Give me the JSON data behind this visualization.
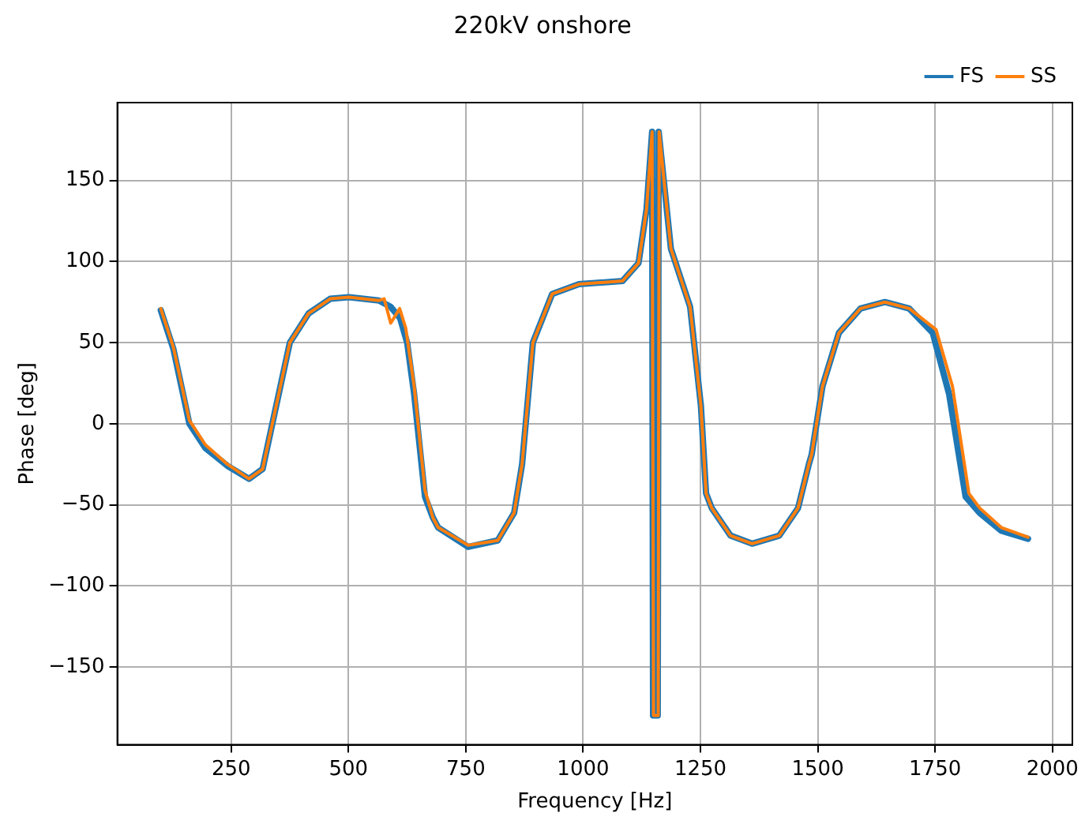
{
  "chart_data": {
    "type": "line",
    "title": "220kV onshore",
    "xlabel": "Frequency [Hz]",
    "ylabel": "Phase [deg]",
    "xlim": [
      7.5,
      2042.5
    ],
    "ylim": [
      -198,
      198
    ],
    "xticks": [
      250,
      500,
      750,
      1000,
      1250,
      1500,
      1750,
      2000
    ],
    "yticks": [
      -150,
      -100,
      -50,
      0,
      50,
      100,
      150
    ],
    "grid": true,
    "legend": "top right",
    "marker": "none",
    "line_style": "solid",
    "series": [
      {
        "name": "FS",
        "color": "#1f77b4",
        "x": [
          100,
          127,
          161,
          195,
          242,
          288,
          317,
          346,
          375,
          415,
          461,
          501,
          565,
          590,
          610,
          625,
          640,
          663,
          680,
          691,
          755,
          818,
          853,
          870,
          893,
          934,
          991,
          1084,
          1118,
          1135,
          1147,
          1149,
          1159,
          1161,
          1187,
          1228,
          1251,
          1262,
          1274,
          1314,
          1360,
          1418,
          1458,
          1481,
          1487,
          1510,
          1545,
          1591,
          1643,
          1695,
          1745,
          1780,
          1815,
          1845,
          1891,
          1948
        ],
        "values": [
          70,
          46,
          0,
          -15,
          -26,
          -34,
          -28,
          11,
          50,
          68,
          77,
          78,
          76,
          72,
          65,
          50,
          18,
          -45,
          -58,
          -64,
          -76,
          -72,
          -55,
          -25,
          50,
          80,
          86,
          88,
          99,
          132,
          180,
          -180,
          -180,
          180,
          108,
          72,
          11,
          -43,
          -52,
          -69,
          -74,
          -69,
          -52,
          -25,
          -19,
          23,
          56,
          71,
          75,
          71,
          56,
          18,
          -45,
          -55,
          -66,
          -71
        ]
      },
      {
        "name": "SS",
        "color": "#ff7f0e",
        "x": [
          100,
          127,
          161,
          195,
          242,
          288,
          317,
          346,
          375,
          415,
          461,
          501,
          565,
          576,
          590,
          609,
          622,
          640,
          663,
          680,
          691,
          755,
          818,
          853,
          870,
          893,
          934,
          991,
          1084,
          1118,
          1135,
          1147,
          1150,
          1160,
          1162,
          1187,
          1228,
          1251,
          1262,
          1274,
          1314,
          1360,
          1418,
          1458,
          1481,
          1487,
          1510,
          1545,
          1591,
          1643,
          1695,
          1752,
          1787,
          1822,
          1845,
          1891,
          1948
        ],
        "values": [
          71,
          47,
          2,
          -13,
          -25,
          -34,
          -28,
          11,
          50,
          68,
          77,
          78,
          76,
          77,
          62,
          71,
          59,
          23,
          -41,
          -58,
          -64,
          -75,
          -72,
          -55,
          -25,
          50,
          80,
          86,
          88,
          99,
          132,
          180,
          -180,
          -180,
          180,
          108,
          72,
          11,
          -43,
          -52,
          -69,
          -74,
          -69,
          -52,
          -25,
          -19,
          23,
          56,
          71,
          75,
          71,
          58,
          23,
          -43,
          -52,
          -64,
          -70
        ]
      }
    ]
  }
}
